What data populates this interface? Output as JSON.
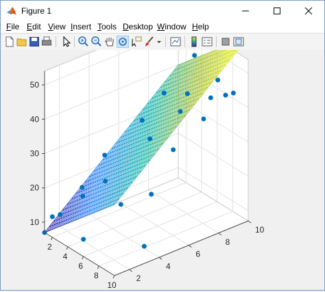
{
  "window": {
    "title": "Figure 1"
  },
  "menu": {
    "items": [
      {
        "label": "File",
        "key": "F",
        "rest": "ile"
      },
      {
        "label": "Edit",
        "key": "E",
        "rest": "dit"
      },
      {
        "label": "View",
        "key": "V",
        "rest": "iew"
      },
      {
        "label": "Insert",
        "key": "I",
        "rest": "nsert"
      },
      {
        "label": "Tools",
        "key": "T",
        "rest": "ools"
      },
      {
        "label": "Desktop",
        "key": "D",
        "rest": "esktop"
      },
      {
        "label": "Window",
        "key": "W",
        "rest": "indow"
      },
      {
        "label": "Help",
        "key": "H",
        "rest": "elp"
      }
    ]
  },
  "toolbar": {
    "tools": [
      "new-figure-icon",
      "open-file-icon",
      "save-icon",
      "print-icon",
      "edit-plot-icon",
      "zoom-in-icon",
      "zoom-out-icon",
      "pan-icon",
      "rotate-3d-icon",
      "data-cursor-icon",
      "brush-icon",
      "link-plot-icon",
      "insert-colorbar-icon",
      "insert-legend-icon",
      "hide-plot-tools-icon",
      "show-plot-tools-icon"
    ],
    "active_tool": "rotate-3d-icon"
  },
  "chart_data": {
    "type": "surface-scatter",
    "x_ticks": [
      2,
      4,
      6,
      8,
      10
    ],
    "y_ticks": [
      2,
      4,
      6,
      8,
      10
    ],
    "z_ticks": [
      10,
      20,
      30,
      40,
      50
    ],
    "xlim": [
      1,
      10
    ],
    "ylim": [
      1,
      10
    ],
    "zlim": [
      7,
      54
    ],
    "grid": true,
    "colormap": "parula",
    "surface": {
      "z_at_x1_y1": 7,
      "slope_x": 2.3,
      "slope_y": 3.65
    },
    "points": [
      {
        "x": 1,
        "y": 1,
        "z": 7
      },
      {
        "x": 2,
        "y": 1,
        "z": 13
      },
      {
        "x": 3,
        "y": 1,
        "z": 15
      },
      {
        "x": 4,
        "y": 2,
        "z": 20
      },
      {
        "x": 2,
        "y": 3,
        "z": 18
      },
      {
        "x": 3,
        "y": 4,
        "z": 27
      },
      {
        "x": 5,
        "y": 3,
        "z": 24
      },
      {
        "x": 4,
        "y": 6,
        "z": 35
      },
      {
        "x": 5,
        "y": 6,
        "z": 31
      },
      {
        "x": 6,
        "y": 8,
        "z": 42
      },
      {
        "x": 7,
        "y": 7,
        "z": 40
      },
      {
        "x": 3,
        "y": 8,
        "z": 38
      },
      {
        "x": 5,
        "y": 9,
        "z": 50
      },
      {
        "x": 6,
        "y": 10,
        "z": 53
      },
      {
        "x": 4,
        "y": 10,
        "z": 52
      },
      {
        "x": 8,
        "y": 9,
        "z": 47
      },
      {
        "x": 9,
        "y": 8,
        "z": 45
      },
      {
        "x": 10,
        "y": 7,
        "z": 42
      },
      {
        "x": 9,
        "y": 9,
        "z": 44
      },
      {
        "x": 10,
        "y": 9,
        "z": 46
      },
      {
        "x": 8,
        "y": 6,
        "z": 32
      },
      {
        "x": 9,
        "y": 4,
        "z": 24
      },
      {
        "x": 7,
        "y": 3,
        "z": 20
      },
      {
        "x": 10,
        "y": 3,
        "z": 12
      },
      {
        "x": 6,
        "y": 1,
        "z": 12
      }
    ]
  }
}
